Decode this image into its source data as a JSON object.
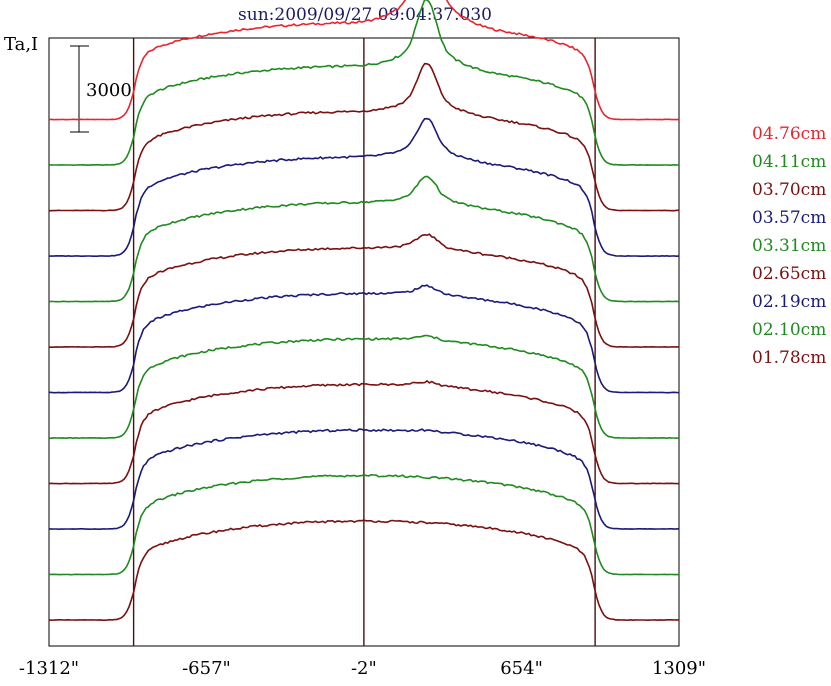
{
  "title": "sun:2009/09/27 09:04:37.030",
  "colors": {
    "background": "#ffffff",
    "title": "#1a1a66",
    "axis": "#000000",
    "limb_lines": "#4a1010",
    "red": "#e8242e",
    "green": "#1f8a1f",
    "dark_red": "#7a1010",
    "navy": "#1a1a7a"
  },
  "chart_data": {
    "type": "line",
    "title": "sun:2009/09/27 09:04:37.030",
    "ylabel": "Ta,I",
    "xlabel": "",
    "scale_bar": {
      "label": "3000",
      "value": 3000
    },
    "x_ticks": [
      {
        "value": -1312,
        "label": "-1312\""
      },
      {
        "value": -657,
        "label": "-657\""
      },
      {
        "value": -2,
        "label": "-2\""
      },
      {
        "value": 654,
        "label": "654\""
      },
      {
        "value": 1309,
        "label": "1309\""
      }
    ],
    "xlim": [
      -1312,
      1309
    ],
    "vertical_lines": [
      -960,
      -2,
      960
    ],
    "wavelength_labels": [
      {
        "text": "04.76cm",
        "color": "#e8242e"
      },
      {
        "text": "04.11cm",
        "color": "#1f8a1f"
      },
      {
        "text": "03.70cm",
        "color": "#7a1010"
      },
      {
        "text": "03.57cm",
        "color": "#1a1a7a"
      },
      {
        "text": "03.31cm",
        "color": "#1f8a1f"
      },
      {
        "text": "02.65cm",
        "color": "#7a1010"
      },
      {
        "text": "02.19cm",
        "color": "#1a1a7a"
      },
      {
        "text": "02.10cm",
        "color": "#1f8a1f"
      },
      {
        "text": "01.78cm",
        "color": "#7a1010"
      }
    ],
    "series": [
      {
        "color": "#e8242e",
        "baseline": 11,
        "plateau": 4.2,
        "peak_x": 260,
        "peak": 3.2
      },
      {
        "color": "#1f8a1f",
        "baseline": 10,
        "plateau": 4.3,
        "peak_x": 260,
        "peak": 2.2
      },
      {
        "color": "#7a1010",
        "baseline": 9,
        "plateau": 4.3,
        "peak_x": 260,
        "peak": 1.6
      },
      {
        "color": "#1a1a7a",
        "baseline": 8,
        "plateau": 4.3,
        "peak_x": 260,
        "peak": 1.3
      },
      {
        "color": "#1f8a1f",
        "baseline": 7,
        "plateau": 4.3,
        "peak_x": 260,
        "peak": 0.9
      },
      {
        "color": "#7a1010",
        "baseline": 6,
        "plateau": 4.3,
        "peak_x": 260,
        "peak": 0.5
      },
      {
        "color": "#1a1a7a",
        "baseline": 5,
        "plateau": 4.3,
        "peak_x": 260,
        "peak": 0.3
      },
      {
        "color": "#1f8a1f",
        "baseline": 4,
        "plateau": 4.3,
        "peak_x": 260,
        "peak": 0.15
      },
      {
        "color": "#7a1010",
        "baseline": 3,
        "plateau": 4.3,
        "peak_x": 260,
        "peak": 0.15
      },
      {
        "color": "#1a1a7a",
        "baseline": 2,
        "plateau": 4.3,
        "peak_x": 260,
        "peak": 0.05
      },
      {
        "color": "#1f8a1f",
        "baseline": 1,
        "plateau": 4.3,
        "peak_x": 260,
        "peak": 0.0
      },
      {
        "color": "#7a1010",
        "baseline": 0,
        "plateau": 4.3,
        "peak_x": 260,
        "peak": 0.0
      }
    ],
    "limb_x": 960,
    "grid": false
  }
}
